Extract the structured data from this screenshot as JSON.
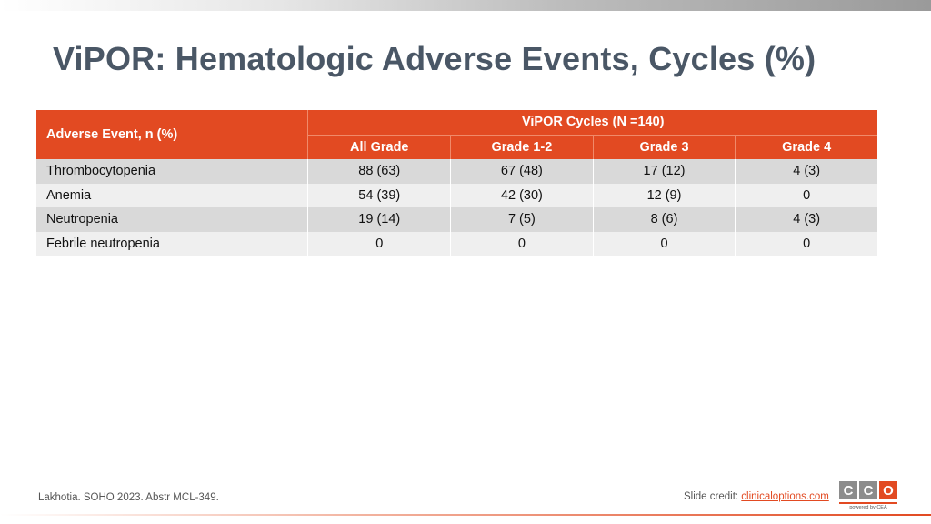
{
  "slide": {
    "title": "ViPOR: Hematologic Adverse Events, Cycles (%)"
  },
  "table": {
    "first_header": "Adverse Event, n (%)",
    "group_header": "ViPOR Cycles (N =140)",
    "sub_headers": [
      "All Grade",
      "Grade 1-2",
      "Grade 3",
      "Grade 4"
    ],
    "rows": [
      {
        "label": "Thrombocytopenia",
        "values": [
          "88 (63)",
          "67 (48)",
          "17 (12)",
          "4 (3)"
        ]
      },
      {
        "label": "Anemia",
        "values": [
          "54 (39)",
          "42 (30)",
          "12 (9)",
          "0"
        ]
      },
      {
        "label": "Neutropenia",
        "values": [
          "19 (14)",
          "7 (5)",
          "8 (6)",
          "4 (3)"
        ]
      },
      {
        "label": "Febrile neutropenia",
        "values": [
          "0",
          "0",
          "0",
          "0"
        ]
      }
    ]
  },
  "footer": {
    "citation": "Lakhotia. SOHO 2023. Abstr MCL-349.",
    "credit_prefix": "Slide credit: ",
    "credit_link": "clinicaloptions.com"
  },
  "logo": {
    "letters": [
      "C",
      "C",
      "O"
    ],
    "tagline": "powered by CEA"
  },
  "colors": {
    "accent": "#e24a22",
    "title": "#4a5766",
    "row_dark": "#d9d9d9",
    "row_light": "#efefef"
  }
}
